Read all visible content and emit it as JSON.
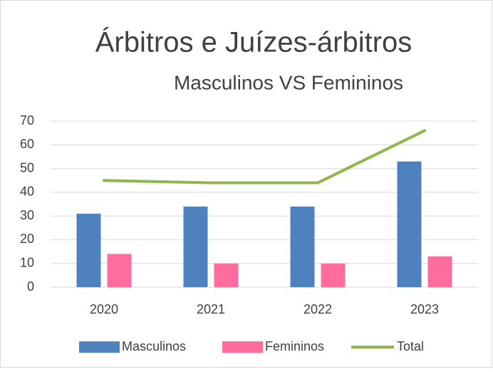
{
  "chart_data": {
    "type": "bar",
    "title": "Árbitros e Juízes-árbitros",
    "subtitle": "Masculinos VS Femininos",
    "categories": [
      "2020",
      "2021",
      "2022",
      "2023"
    ],
    "series": [
      {
        "name": "Masculinos",
        "color": "#4e81bd",
        "values": [
          31,
          34,
          34,
          53
        ]
      },
      {
        "name": "Femininos",
        "color": "#ff6c9d",
        "values": [
          14,
          10,
          10,
          13
        ]
      },
      {
        "name": "Total",
        "color": "#8fb74c",
        "type": "line",
        "values": [
          45,
          44,
          44,
          66
        ]
      }
    ],
    "ylim": [
      0,
      70
    ],
    "yticks": [
      0,
      10,
      20,
      30,
      40,
      50,
      60,
      70
    ],
    "grid": true,
    "legend": "bottom"
  }
}
